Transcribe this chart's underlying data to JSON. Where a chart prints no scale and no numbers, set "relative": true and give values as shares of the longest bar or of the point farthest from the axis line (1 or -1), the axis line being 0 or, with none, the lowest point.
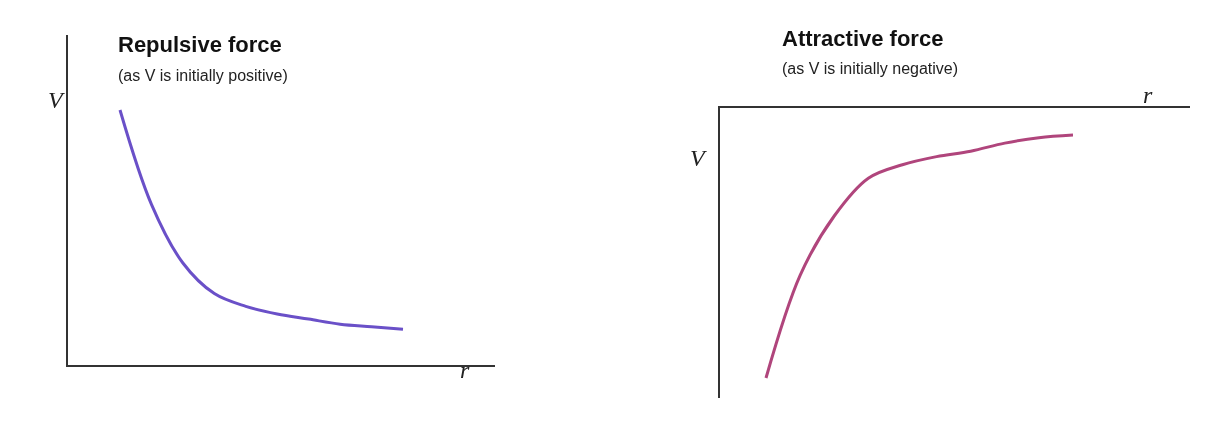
{
  "chart_data": [
    {
      "type": "line",
      "title": "Repulsive force",
      "subtitle": "(as V is initially positive)",
      "xlabel": "r",
      "ylabel": "V",
      "relative": true,
      "categories": [
        null,
        null,
        null,
        null,
        null,
        null,
        null,
        null,
        null,
        null
      ],
      "series": [
        {
          "color": "#6a50c8",
          "values": [
            1.0,
            0.63,
            0.4,
            0.28,
            0.23,
            0.2,
            0.18,
            0.16,
            0.15,
            0.14
          ]
        }
      ],
      "line_style": "solid",
      "marker": "none"
    },
    {
      "type": "line",
      "title": "Attractive force",
      "subtitle": "(as V is initially negative)",
      "xlabel": "r",
      "ylabel": "V",
      "relative": true,
      "categories": [
        null,
        null,
        null,
        null,
        null,
        null,
        null,
        null,
        null,
        null
      ],
      "series": [
        {
          "color": "#b0457c",
          "values": [
            -1.0,
            -0.62,
            -0.4,
            -0.26,
            -0.21,
            -0.18,
            -0.16,
            -0.13,
            -0.11,
            -0.1
          ]
        }
      ],
      "line_style": "solid",
      "marker": "none"
    }
  ]
}
